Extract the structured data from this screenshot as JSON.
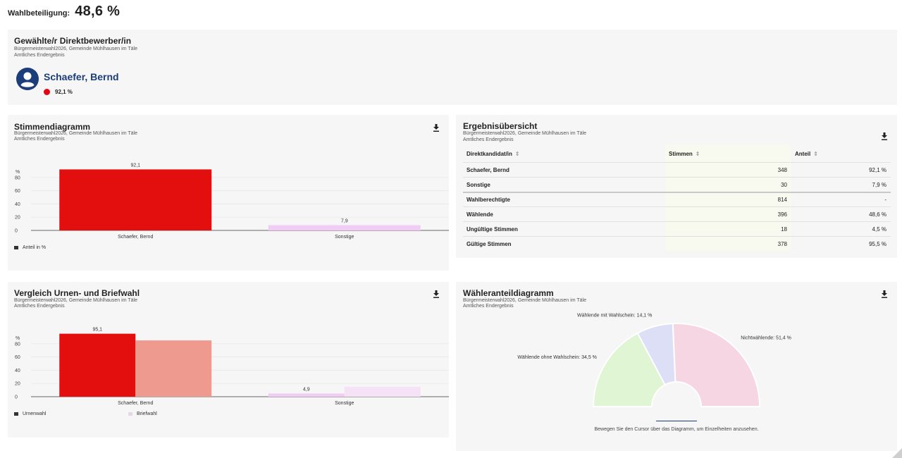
{
  "turnout": {
    "label": "Wahlbeteiligung:",
    "value": "48,6 %"
  },
  "winner_card": {
    "title": "Gewählte/r Direktbewerber/in",
    "subtitle": "Bürgermeisterwahl2026, Gemeinde Mühlhausen im Täle",
    "status": "Amtliches Endergebnis",
    "name": "Schaefer, Bernd",
    "percent": "92,1 %",
    "dot_color": "#e30613"
  },
  "votes_chart": {
    "title": "Stimmendiagramm",
    "subtitle": "Bürgermeisterwahl2026, Gemeinde Mühlhausen im Täle",
    "status": "Amtliches Endergebnis",
    "download_icon": "download-icon",
    "legend": "Anteil in %"
  },
  "results_table": {
    "title": "Ergebnisübersicht",
    "subtitle": "Bürgermeisterwahl2026, Gemeinde Mühlhausen im Täle",
    "status": "Amtliches Endergebnis",
    "download_icon": "download-icon",
    "headers": [
      "Direktkandidat/in",
      "Stimmen",
      "Anteil"
    ],
    "rows": [
      {
        "name": "Schaefer, Bernd",
        "votes": "348",
        "share": "92,1 %"
      },
      {
        "name": "Sonstige",
        "votes": "30",
        "share": "7,9 %"
      },
      {
        "name": "Wahlberechtigte",
        "votes": "814",
        "share": "-"
      },
      {
        "name": "Wählende",
        "votes": "396",
        "share": "48,6 %"
      },
      {
        "name": "Ungültige Stimmen",
        "votes": "18",
        "share": "4,5 %"
      },
      {
        "name": "Gültige Stimmen",
        "votes": "378",
        "share": "95,5 %"
      }
    ]
  },
  "compare_chart": {
    "title": "Vergleich Urnen- und Briefwahl",
    "subtitle": "Bürgermeisterwahl2026, Gemeinde Mühlhausen im Täle",
    "status": "Amtliches Endergebnis",
    "download_icon": "download-icon",
    "legend": [
      "Urnenwahl",
      "Briefwahl"
    ]
  },
  "voter_chart": {
    "title": "Wähleranteildiagramm",
    "subtitle": "Bürgermeisterwahl2026, Gemeinde Mühlhausen im Täle",
    "status": "Amtliches Endergebnis",
    "download_icon": "download-icon",
    "hint": "Bewegen Sie den Cursor über das Diagramm, um Einzelheiten anzusehen."
  },
  "chart_data": [
    {
      "type": "bar",
      "categories": [
        "Schaefer, Bernd",
        "Sonstige"
      ],
      "values": [
        92.1,
        7.9
      ],
      "data_labels": [
        "92,1",
        "7,9"
      ],
      "colors": [
        "#e30f0f",
        "#f1cdf5"
      ],
      "ylabel": "%",
      "yticks": [
        0,
        20,
        40,
        60,
        80
      ],
      "ylim": [
        0,
        100
      ],
      "legend": [
        "Anteil in %"
      ]
    },
    {
      "type": "bar",
      "categories": [
        "Schaefer, Bernd",
        "Sonstige"
      ],
      "series": [
        {
          "name": "Urnenwahl",
          "values": [
            95.1,
            4.9
          ],
          "colors": [
            "#e30f0f",
            "#f1cdf5"
          ]
        },
        {
          "name": "Briefwahl",
          "values": [
            85,
            15
          ],
          "colors": [
            "#ee9a8f",
            "#f5e2f7"
          ]
        }
      ],
      "data_labels": [
        "95,1",
        "4,9"
      ],
      "ylabel": "%",
      "yticks": [
        0,
        20,
        40,
        60,
        80
      ],
      "ylim": [
        0,
        100
      ],
      "legend": [
        "Urnenwahl",
        "Briefwahl"
      ]
    },
    {
      "type": "pie",
      "shape": "half-donut",
      "slices": [
        {
          "label": "Wählende ohne Wahlschein: 34,5 %",
          "value": 34.5,
          "color": "#dff5d3"
        },
        {
          "label": "Wählende mit Wahlschein: 14,1 %",
          "value": 14.1,
          "color": "#dcdff6"
        },
        {
          "label": "Nichtwählende: 51,4 %",
          "value": 51.4,
          "color": "#f7d6e3"
        }
      ]
    }
  ]
}
